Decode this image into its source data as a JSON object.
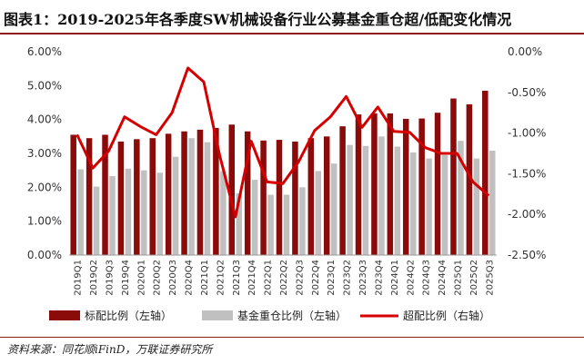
{
  "header": {
    "title": "图表1：2019-2025年各季度SW机械设备行业公募基金重仓超/低配变化情况"
  },
  "footer": {
    "source": "资料来源：同花顺iFinD，万联证券研究所"
  },
  "colors": {
    "bar_primary": "#8b0a0a",
    "bar_secondary": "#c0c0c0",
    "line": "#d40000",
    "rule": "#8b1a1a"
  },
  "chart_data": {
    "type": "bar",
    "title": "",
    "categories": [
      "2019Q1",
      "2019Q2",
      "2019Q3",
      "2019Q4",
      "2020Q1",
      "2020Q2",
      "2020Q3",
      "2020Q4",
      "2021Q1",
      "2021Q2",
      "2021Q3",
      "2021Q4",
      "2022Q1",
      "2022Q2",
      "2022Q3",
      "2022Q4",
      "2023Q1",
      "2023Q2",
      "2023Q3",
      "2023Q4",
      "2024Q1",
      "2024Q2",
      "2024Q3",
      "2024Q4",
      "2025Q1",
      "2025Q2",
      "2025Q3"
    ],
    "left_axis": {
      "ylim": [
        0,
        6
      ],
      "ticks": [
        "0.00%",
        "1.00%",
        "2.00%",
        "3.00%",
        "4.00%",
        "5.00%",
        "6.00%"
      ]
    },
    "right_axis": {
      "ylim": [
        -2.5,
        0
      ],
      "ticks": [
        "-2.50%",
        "-2.00%",
        "-1.50%",
        "-1.00%",
        "-0.50%",
        "0.00%"
      ]
    },
    "legend_position": "bottom",
    "grid": false,
    "series": [
      {
        "name": "标配比例（左轴）",
        "kind": "bar",
        "axis": "left",
        "values": [
          3.55,
          3.45,
          3.55,
          3.35,
          3.42,
          3.45,
          3.58,
          3.65,
          3.7,
          3.75,
          3.85,
          3.65,
          3.38,
          3.4,
          3.35,
          3.45,
          3.5,
          3.8,
          4.15,
          4.18,
          4.18,
          4.02,
          4.03,
          4.2,
          4.62,
          4.45,
          4.85
        ]
      },
      {
        "name": "基金重仓比例（左轴）",
        "kind": "bar",
        "axis": "left",
        "values": [
          2.53,
          2.02,
          2.33,
          2.55,
          2.5,
          2.43,
          2.9,
          3.45,
          3.33,
          2.48,
          1.82,
          2.22,
          1.78,
          1.78,
          2.0,
          2.48,
          2.7,
          3.25,
          3.22,
          3.5,
          3.2,
          3.03,
          2.85,
          2.95,
          3.37,
          2.85,
          3.08
        ]
      },
      {
        "name": "超配比例（右轴）",
        "kind": "line",
        "axis": "right",
        "values": [
          -1.02,
          -1.43,
          -1.22,
          -0.8,
          -0.92,
          -1.02,
          -0.75,
          -0.2,
          -0.37,
          -1.27,
          -2.03,
          -1.1,
          -1.6,
          -1.62,
          -1.35,
          -0.97,
          -0.8,
          -0.55,
          -0.93,
          -0.68,
          -0.98,
          -0.99,
          -1.18,
          -1.25,
          -1.25,
          -1.6,
          -1.77
        ]
      }
    ]
  }
}
